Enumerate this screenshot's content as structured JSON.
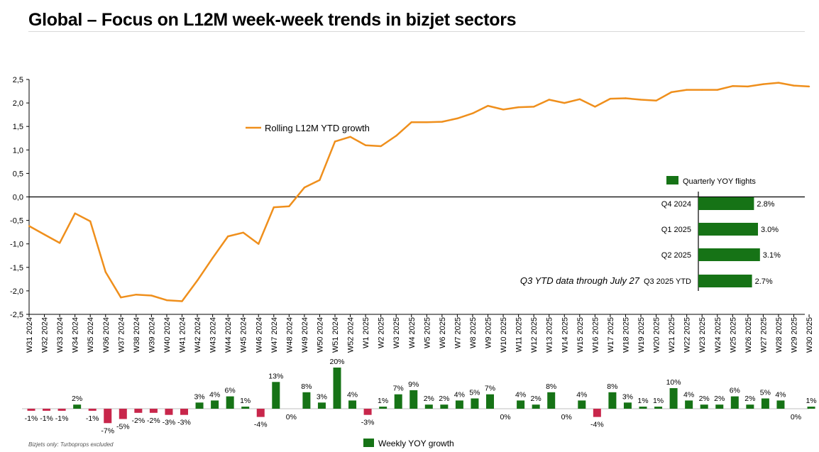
{
  "title": "Global – Focus on L12M week-week trends in bizjet sectors",
  "footnote": "Bizjets only: Turboprops excluded",
  "colors": {
    "line": "#ef8f1c",
    "positive": "#167316",
    "negative": "#c8264b",
    "axis": "#000000",
    "grid": "#d9d9d9"
  },
  "chart_data": [
    {
      "type": "line",
      "title": "Rolling L12M YTD growth",
      "legend_label": "Rolling L12M YTD growth",
      "categories": [
        "W31 2024",
        "W32 2024",
        "W33 2024",
        "W34 2024",
        "W35 2024",
        "W36 2024",
        "W37 2024",
        "W38 2024",
        "W39 2024",
        "W40 2024",
        "W41 2024",
        "W42 2024",
        "W43 2024",
        "W44 2024",
        "W45 2024",
        "W46 2024",
        "W47 2024",
        "W48 2024",
        "W49 2024",
        "W50 2024",
        "W51 2024",
        "W52 2024",
        "W1 2025",
        "W2 2025",
        "W3 2025",
        "W4 2025",
        "W5 2025",
        "W6 2025",
        "W7 2025",
        "W8 2025",
        "W9 2025",
        "W10 2025",
        "W11 2025",
        "W12 2025",
        "W13 2025",
        "W14 2025",
        "W15 2025",
        "W16 2025",
        "W17 2025",
        "W18 2025",
        "W19 2025",
        "W20 2025",
        "W21 2025",
        "W22 2025",
        "W23 2025",
        "W24 2025",
        "W25 2025",
        "W26 2025",
        "W27 2025",
        "W28 2025",
        "W29 2025",
        "W30 2025"
      ],
      "values": [
        -0.62,
        -0.8,
        -0.98,
        -0.35,
        -0.52,
        -1.6,
        -2.14,
        -2.08,
        -2.1,
        -2.2,
        -2.22,
        -1.78,
        -1.3,
        -0.84,
        -0.76,
        -1.0,
        -0.22,
        -0.2,
        0.2,
        0.36,
        1.18,
        1.28,
        1.1,
        1.08,
        1.3,
        1.59,
        1.59,
        1.6,
        1.67,
        1.78,
        1.94,
        1.86,
        1.91,
        1.92,
        2.07,
        2.0,
        2.08,
        1.92,
        2.09,
        2.1,
        2.07,
        2.05,
        2.23,
        2.28,
        2.28,
        2.28,
        2.36,
        2.35,
        2.4,
        2.43,
        2.37,
        2.35
      ],
      "ylim": [
        -2.5,
        2.5
      ],
      "yticks": [
        "2,5",
        "2,0",
        "1,5",
        "1,0",
        "0,5",
        "0,0",
        "-0,5",
        "-1,0",
        "-1,5",
        "-2,0",
        "-2,5"
      ]
    },
    {
      "type": "bar",
      "title": "Weekly YOY growth",
      "legend_label": "Weekly YOY growth",
      "values": [
        -1,
        -1,
        -1,
        2,
        -1,
        -7,
        -5,
        -2,
        -2,
        -3,
        -3,
        3,
        4,
        6,
        1,
        -4,
        13,
        0,
        8,
        3,
        20,
        4,
        -3,
        1,
        7,
        9,
        2,
        2,
        4,
        5,
        7,
        0,
        4,
        2,
        8,
        0,
        4,
        -4,
        8,
        3,
        1,
        1,
        10,
        4,
        2,
        2,
        6,
        2,
        5,
        4,
        0,
        1
      ],
      "labels": [
        "-1%",
        "-1%",
        "-1%",
        "2%",
        "-1%",
        "-7%",
        "-5%",
        "-2%",
        "-2%",
        "-3%",
        "-3%",
        "3%",
        "4%",
        "6%",
        "1%",
        "-4%",
        "13%",
        "0%",
        "8%",
        "3%",
        "20%",
        "4%",
        "-3%",
        "1%",
        "7%",
        "9%",
        "2%",
        "2%",
        "4%",
        "5%",
        "7%",
        "0%",
        "4%",
        "2%",
        "8%",
        "0%",
        "4%",
        "-4%",
        "8%",
        "3%",
        "1%",
        "1%",
        "10%",
        "4%",
        "2%",
        "2%",
        "6%",
        "2%",
        "5%",
        "4%",
        "0%",
        "1%"
      ]
    },
    {
      "type": "bar",
      "orientation": "horizontal",
      "title": "Quarterly YOY flights",
      "legend_label": "Quarterly YOY flights",
      "categories": [
        "Q4 2024",
        "Q1 2025",
        "Q2 2025",
        "Q3 2025 YTD"
      ],
      "values": [
        2.8,
        3.0,
        3.1,
        2.7
      ],
      "labels": [
        "2.8%",
        "3.0%",
        "3.1%",
        "2.7%"
      ],
      "annotation": "Q3 YTD data through July 27"
    }
  ]
}
